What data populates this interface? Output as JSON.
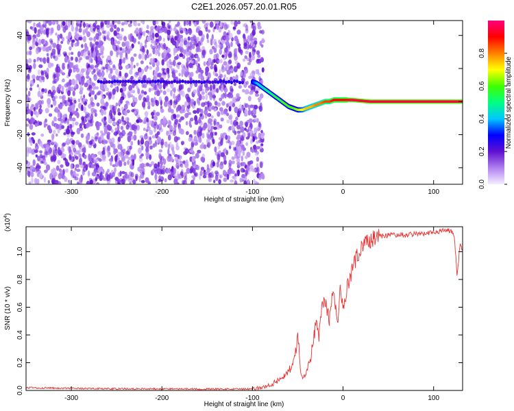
{
  "title": "C2E1.2026.057.20.01.R05",
  "chart_data": [
    {
      "type": "heatmap",
      "xlabel": "Height of straight line (km)",
      "ylabel": "Frequency (Hz)",
      "xlim": [
        -350,
        132
      ],
      "ylim": [
        -50,
        49
      ],
      "x_ticks": [
        -300,
        -200,
        -100,
        0,
        100
      ],
      "x_tick_labels": [
        "-300",
        "-200",
        "-100",
        "0",
        "100"
      ],
      "y_ticks": [
        -40,
        -20,
        0,
        20,
        40
      ],
      "y_tick_labels": [
        "-40",
        "-20",
        "0",
        "20",
        "40"
      ],
      "colorbar": {
        "label": "Normalized spectral amplitude",
        "range": [
          0,
          1
        ],
        "ticks": [
          0.0,
          0.2,
          0.4,
          0.6,
          0.8
        ],
        "tick_labels": [
          "0.0",
          "0.2",
          "0.4",
          "0.6",
          "0.8"
        ],
        "colormap": "rainbow",
        "stops": [
          "#f4eeff",
          "#b080f0",
          "#6010d0",
          "#0000ff",
          "#00c8ff",
          "#00ff80",
          "#40ff00",
          "#ffff00",
          "#ff8000",
          "#ff0000",
          "#ff0080"
        ]
      },
      "noise_region": {
        "x_range": [
          -350,
          -88
        ],
        "y_range": [
          -50,
          49
        ],
        "amplitude": [
          0.05,
          0.2
        ]
      },
      "signal_trace": {
        "x": [
          -100,
          -95,
          -90,
          -85,
          -80,
          -75,
          -70,
          -65,
          -60,
          -55,
          -50,
          -45,
          -40,
          -35,
          -30,
          -25,
          -20,
          -15,
          -10,
          -5,
          0,
          10,
          30,
          60,
          100,
          132
        ],
        "y": [
          12,
          11,
          9,
          7,
          5,
          3,
          1,
          -1,
          -3,
          -4,
          -5,
          -5,
          -4,
          -3,
          -2,
          -1,
          0,
          0,
          1,
          1,
          1,
          1,
          0,
          0,
          0,
          0
        ],
        "amplitude": [
          0.3,
          0.4,
          0.45,
          0.5,
          0.5,
          0.55,
          0.55,
          0.6,
          0.6,
          0.6,
          0.65,
          0.7,
          0.75,
          0.75,
          0.8,
          0.8,
          0.85,
          0.85,
          0.9,
          0.9,
          0.9,
          0.95,
          0.95,
          0.95,
          0.95,
          0.95
        ]
      },
      "weak_line": {
        "x_range": [
          -270,
          -110
        ],
        "y": 12,
        "amplitude": 0.22
      }
    },
    {
      "type": "line",
      "xlabel": "Height of straight line (km)",
      "ylabel": "SNR (10 * v/v)",
      "y_multiplier_label": "(x10",
      "y_multiplier_exponent": "4",
      "y_multiplier_suffix": ")",
      "xlim": [
        -350,
        132
      ],
      "ylim": [
        0,
        1.18
      ],
      "x_ticks": [
        -300,
        -200,
        -100,
        0,
        100
      ],
      "x_tick_labels": [
        "-300",
        "-200",
        "-100",
        "0",
        "100"
      ],
      "y_ticks": [
        0.0,
        0.2,
        0.4,
        0.6,
        0.8,
        1.0
      ],
      "y_tick_labels": [
        "0.0",
        "0.2",
        "0.4",
        "0.6",
        "0.8",
        "1.0"
      ],
      "series": [
        {
          "color": "#e83030",
          "x": [
            -350,
            -300,
            -250,
            -200,
            -150,
            -110,
            -100,
            -90,
            -80,
            -70,
            -60,
            -55,
            -52,
            -50,
            -47,
            -44,
            -40,
            -36,
            -33,
            -30,
            -27,
            -24,
            -21,
            -18,
            -15,
            -12,
            -9,
            -6,
            -3,
            0,
            3,
            6,
            9,
            12,
            15,
            18,
            21,
            25,
            30,
            35,
            40,
            50,
            60,
            70,
            80,
            90,
            100,
            110,
            115,
            120,
            123,
            126,
            129,
            132
          ],
          "y": [
            0.02,
            0.015,
            0.012,
            0.012,
            0.01,
            0.01,
            0.01,
            0.02,
            0.04,
            0.08,
            0.14,
            0.2,
            0.28,
            0.4,
            0.15,
            0.1,
            0.14,
            0.22,
            0.35,
            0.48,
            0.38,
            0.6,
            0.66,
            0.6,
            0.5,
            0.7,
            0.62,
            0.52,
            0.72,
            0.58,
            0.68,
            0.78,
            0.84,
            0.9,
            0.96,
            1.0,
            1.03,
            1.06,
            1.08,
            1.1,
            1.11,
            1.12,
            1.12,
            1.12,
            1.13,
            1.13,
            1.14,
            1.15,
            1.16,
            1.14,
            1.1,
            0.82,
            1.05,
            1.02
          ]
        }
      ]
    }
  ]
}
